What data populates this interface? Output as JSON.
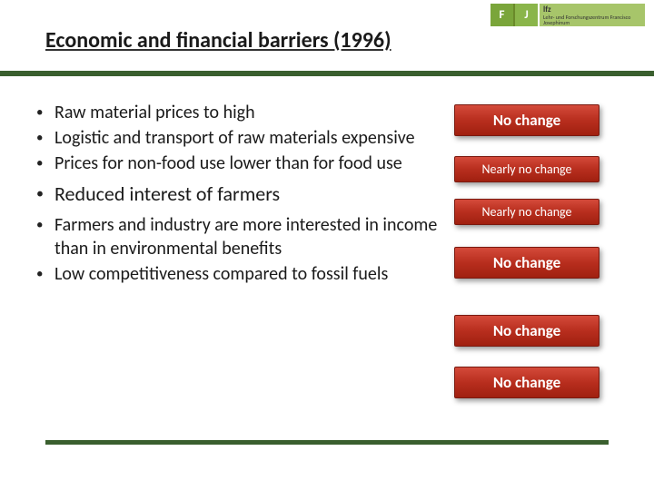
{
  "title": "Economic and financial barriers (1996)",
  "logo": {
    "f": "F",
    "j": "J",
    "sub": "lfz",
    "tagline": "Lehr- und Forschungszentrum Francisco Josephinum"
  },
  "bullets": [
    {
      "text": "Raw material prices to high",
      "large": false
    },
    {
      "text": "Logistic and transport of raw materials expensive",
      "large": false
    },
    {
      "text": "Prices for non-food use lower than for food use",
      "large": false
    },
    {
      "text": "Reduced interest of farmers",
      "large": true
    },
    {
      "text": "Farmers and industry are more interested in income than in environmental benefits",
      "large": false
    },
    {
      "text": "Low competitiveness compared to fossil fuels",
      "large": false
    }
  ],
  "statuses": [
    {
      "label": "No change",
      "bold": true,
      "mt": 0
    },
    {
      "label": "Nearly no change",
      "bold": false,
      "mt": 22
    },
    {
      "label": "Nearly no change",
      "bold": false,
      "mt": 18
    },
    {
      "label": "No change",
      "bold": true,
      "mt": 24
    },
    {
      "label": "No change",
      "bold": true,
      "mt": 40
    },
    {
      "label": "No change",
      "bold": true,
      "mt": 22
    }
  ],
  "colors": {
    "accent": "#3a5f2e",
    "status_bg_top": "#d44a3a",
    "status_bg_bottom": "#a02010"
  }
}
